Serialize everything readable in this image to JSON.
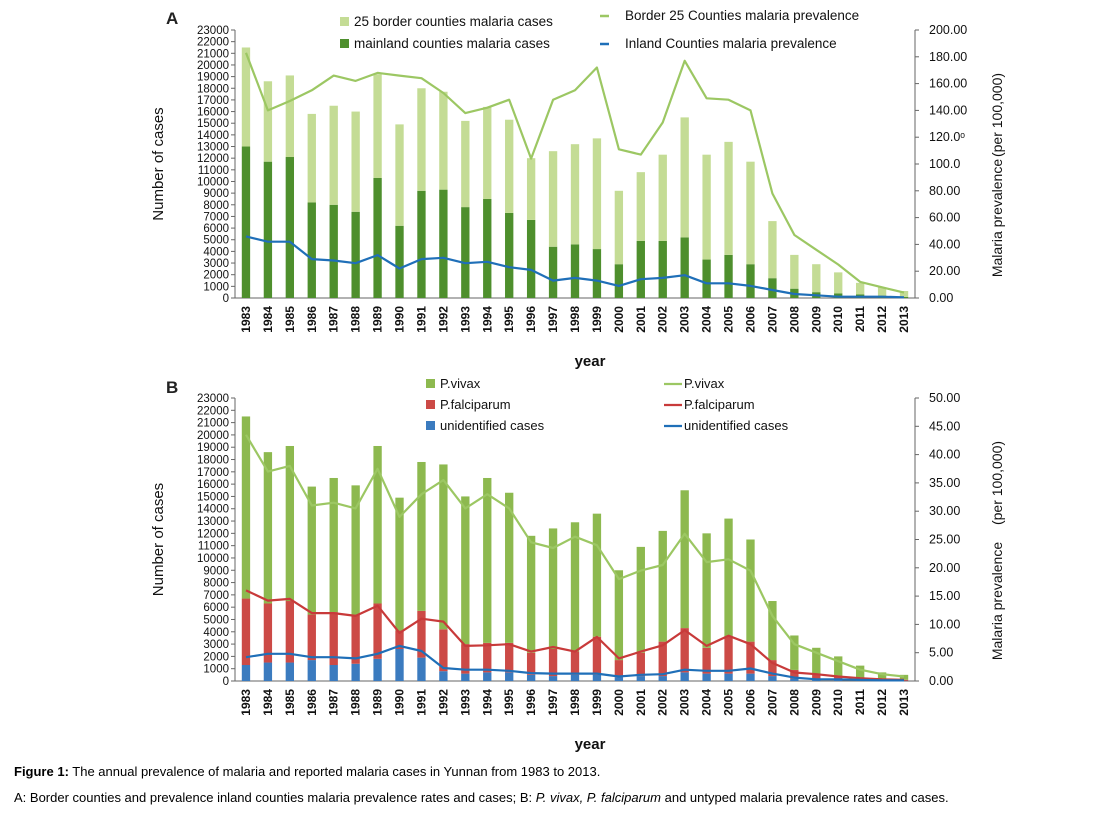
{
  "chart_data": [
    {
      "panel": "A",
      "type": "bar+line",
      "xlabel": "year",
      "ylabel": "Number of cases",
      "y2label": "Malaria prevalence",
      "y2unit": "(per 100,000)",
      "ylim": [
        0,
        23000
      ],
      "y2lim": [
        0,
        200
      ],
      "y_ticks": [
        0,
        1000,
        2000,
        3000,
        4000,
        5000,
        6000,
        7000,
        8000,
        9000,
        10000,
        11000,
        12000,
        13000,
        14000,
        15000,
        16000,
        17000,
        18000,
        19000,
        20000,
        21000,
        22000,
        23000
      ],
      "y2_ticks": [
        "0.00",
        "20.00",
        "40.00",
        "60.00",
        "80.00",
        "100.0",
        "120.0ᵒ",
        "140.00",
        "160.00",
        "180.00",
        "200.00"
      ],
      "categories": [
        "1983",
        "1984",
        "1985",
        "1986",
        "1987",
        "1988",
        "1989",
        "1990",
        "1991",
        "1992",
        "1993",
        "1994",
        "1995",
        "1996",
        "1997",
        "1998",
        "1999",
        "2000",
        "2001",
        "2002",
        "2003",
        "2004",
        "2005",
        "2006",
        "2007",
        "2008",
        "2009",
        "2010",
        "2011",
        "2012",
        "2013"
      ],
      "bar_series": [
        {
          "name": "mainland counties malaria cases",
          "color": "#4e8f2d",
          "values": [
            13000,
            11700,
            12100,
            8200,
            8000,
            7400,
            10300,
            6200,
            9200,
            9300,
            7800,
            8500,
            7300,
            6700,
            4400,
            4600,
            4200,
            2900,
            4900,
            4900,
            5200,
            3300,
            3700,
            2900,
            1700,
            800,
            500,
            400,
            300,
            200,
            100
          ]
        },
        {
          "name": "25 border counties malaria cases",
          "color": "#c4dc95",
          "values": [
            8500,
            6900,
            7000,
            7600,
            8500,
            8600,
            8900,
            8700,
            8800,
            8400,
            7400,
            7900,
            8000,
            5300,
            8200,
            8600,
            9500,
            6300,
            5900,
            7400,
            10300,
            9000,
            9700,
            8800,
            4900,
            2900,
            2400,
            1800,
            1000,
            700,
            500
          ]
        }
      ],
      "line_series": [
        {
          "name": "Border 25 Counties malaria prevalence",
          "color": "#9cc763",
          "values": [
            183,
            140,
            147,
            155,
            166,
            162,
            168,
            166,
            164,
            153,
            138,
            142,
            148,
            104,
            148,
            155,
            172,
            111,
            107,
            131,
            177,
            149,
            148,
            140,
            78,
            47,
            36,
            25,
            12,
            8,
            4
          ]
        },
        {
          "name": "Inland  Counties malaria prevalence",
          "color": "#1f6fb8",
          "values": [
            46,
            42,
            42,
            29,
            28,
            26,
            32,
            22,
            29,
            30,
            26,
            27,
            23,
            21,
            13,
            15,
            13,
            9,
            14,
            15,
            17,
            11,
            11,
            9,
            6,
            3,
            2,
            1,
            1,
            1,
            0.5
          ]
        }
      ]
    },
    {
      "panel": "B",
      "type": "bar+line",
      "xlabel": "year",
      "ylabel": "Number of cases",
      "y2label": "Malaria prevalence",
      "y2unit": "(per 100,000)",
      "ylim": [
        0,
        23000
      ],
      "y2lim": [
        0,
        50
      ],
      "y_ticks": [
        0,
        1000,
        2000,
        3000,
        4000,
        5000,
        6000,
        7000,
        8000,
        9000,
        10000,
        11000,
        12000,
        13000,
        14000,
        15000,
        16000,
        17000,
        18000,
        19000,
        20000,
        21000,
        22000,
        23000
      ],
      "y2_ticks": [
        "0.00",
        "5.00",
        "10.00",
        "15.00",
        "20.00",
        "25.00",
        "30.00",
        "35.00",
        "40.00",
        "45.00",
        "50.00"
      ],
      "categories": [
        "1983",
        "1984",
        "1985",
        "1986",
        "1987",
        "1988",
        "1989",
        "1990",
        "1991",
        "1992",
        "1993",
        "1994",
        "1995",
        "1996",
        "1997",
        "1998",
        "1999",
        "2000",
        "2001",
        "2002",
        "2003",
        "2004",
        "2005",
        "2006",
        "2007",
        "2008",
        "2009",
        "2010",
        "2011",
        "2012",
        "2013"
      ],
      "bar_series": [
        {
          "name": "unidentified cases",
          "color": "#3b7bbf",
          "values": [
            1300,
            1500,
            1500,
            1700,
            1300,
            1400,
            1800,
            2600,
            1900,
            800,
            600,
            700,
            700,
            500,
            400,
            500,
            500,
            300,
            400,
            400,
            700,
            600,
            600,
            600,
            400,
            200,
            100,
            100,
            50,
            30,
            20
          ]
        },
        {
          "name": "P.falciparum",
          "color": "#cc4a46",
          "values": [
            5400,
            4800,
            5000,
            3700,
            4300,
            4000,
            4500,
            1500,
            3800,
            3400,
            2400,
            2400,
            2400,
            1800,
            2200,
            1900,
            3100,
            1400,
            1900,
            2800,
            3600,
            2100,
            3000,
            2600,
            1300,
            700,
            400,
            300,
            200,
            100,
            80
          ]
        },
        {
          "name": "P.vivax",
          "color": "#8db94f",
          "values": [
            14800,
            12300,
            12600,
            10400,
            10900,
            10500,
            12800,
            10800,
            12100,
            13400,
            12000,
            13400,
            12200,
            9500,
            9800,
            10500,
            10000,
            7300,
            8600,
            9000,
            11200,
            9300,
            9600,
            8300,
            4800,
            2800,
            2200,
            1600,
            1000,
            570,
            400
          ]
        }
      ],
      "line_series": [
        {
          "name": "P.vivax",
          "color": "#9cc763",
          "values": [
            43.5,
            37,
            38,
            31,
            31.5,
            30.5,
            37.5,
            29,
            33,
            35.5,
            30.5,
            33,
            30.5,
            24.5,
            23.5,
            25.5,
            24,
            18,
            19.5,
            20.5,
            26,
            21,
            21.5,
            19.5,
            11.5,
            6.5,
            5,
            3.5,
            2,
            1.2,
            0.8
          ]
        },
        {
          "name": "P.falciparum",
          "color": "#c83a3a",
          "values": [
            16,
            14.2,
            14.5,
            12,
            12,
            11.5,
            13.3,
            8.5,
            11,
            10.5,
            6.2,
            6.3,
            6.5,
            5.2,
            6,
            5.2,
            7.8,
            4,
            5.2,
            6.3,
            9,
            6.2,
            8,
            6.5,
            3.2,
            1.5,
            1.2,
            0.8,
            0.5,
            0.3,
            0.2
          ]
        },
        {
          "name": "unidentified cases",
          "color": "#1f6fb8",
          "values": [
            4.2,
            4.8,
            4.8,
            4.2,
            4.2,
            4,
            4.8,
            6.2,
            5.3,
            2.3,
            2,
            2,
            1.8,
            1.4,
            1.3,
            1.3,
            1.3,
            0.8,
            1.1,
            1.2,
            2,
            1.8,
            1.8,
            2.2,
            1.3,
            0.6,
            0.3,
            0.3,
            0.2,
            0.1,
            0.1
          ]
        }
      ]
    }
  ],
  "caption": {
    "label": "Figure 1:",
    "text": " The annual prevalence of malaria and reported malaria cases in Yunnan from 1983 to 2013.",
    "line2_parts": [
      "A: Border counties and prevalence inland counties malaria prevalence rates and cases; B: ",
      "P. vivax, P. falciparum",
      " and untyped malaria prevalence rates and cases."
    ]
  }
}
